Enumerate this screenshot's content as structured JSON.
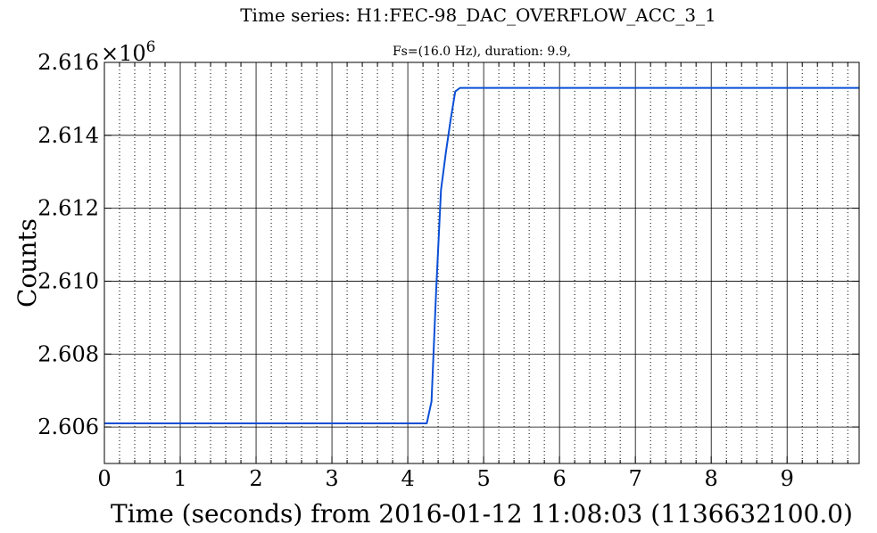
{
  "chart_data": {
    "type": "line",
    "title": "Time series:  H1:FEC-98_DAC_OVERFLOW_ACC_3_1",
    "subtitle": "Fs=(16.0 Hz), duration: 9.9,",
    "xlabel": "Time (seconds) from 2016-01-12 11:08:03 (1136632100.0)",
    "ylabel": "Counts",
    "y_multiplier": "×10",
    "y_multiplier_exponent": "6",
    "xlim": [
      0,
      9.95
    ],
    "ylim": [
      2605000,
      2616000
    ],
    "x_ticks": [
      0,
      1,
      2,
      3,
      4,
      5,
      6,
      7,
      8,
      9
    ],
    "x_tick_labels": [
      "0",
      "1",
      "2",
      "3",
      "4",
      "5",
      "6",
      "7",
      "8",
      "9"
    ],
    "y_ticks": [
      2606000,
      2608000,
      2610000,
      2612000,
      2614000,
      2616000
    ],
    "y_tick_labels": [
      "2.606",
      "2.608",
      "2.610",
      "2.612",
      "2.614",
      "2.616"
    ],
    "x_minor_step": 0.2,
    "grid": true,
    "line_color": "#0a4fd6",
    "series": [
      {
        "name": "H1:FEC-98_DAC_OVERFLOW_ACC_3_1",
        "x": [
          0,
          4.25,
          4.3125,
          4.375,
          4.4375,
          4.5,
          4.5625,
          4.625,
          4.6875,
          4.75,
          9.95
        ],
        "y": [
          2606100,
          2606100,
          2606700,
          2609800,
          2612500,
          2613500,
          2614400,
          2615200,
          2615300,
          2615300,
          2615300
        ]
      }
    ]
  }
}
